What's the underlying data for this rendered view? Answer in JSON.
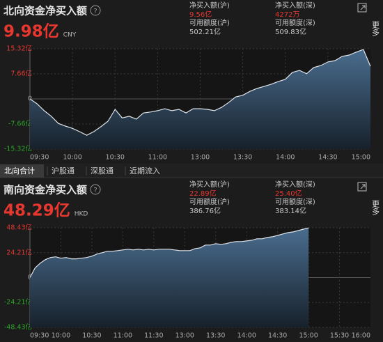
{
  "tabs": [
    "北向合计",
    "沪股通",
    "深股通",
    "近期流入"
  ],
  "more": "更多",
  "help_icon": "?",
  "chart_data": [
    {
      "type": "area",
      "title": "北向资金净买入额",
      "headline": "9.98亿",
      "currency": "CNY",
      "stats": [
        {
          "label": "净买入额(沪)",
          "value": "9.56亿",
          "color": "#e8372f"
        },
        {
          "label": "净买入额(深)",
          "value": "4272万",
          "color": "#e8372f"
        },
        {
          "label": "可用额度(沪)",
          "value": "502.21亿",
          "color": "#cccccc"
        },
        {
          "label": "可用额度(深)",
          "value": "509.83亿",
          "color": "#cccccc"
        }
      ],
      "categories": [
        "09:30",
        null,
        null,
        null,
        null,
        null,
        "10:00",
        null,
        null,
        null,
        null,
        null,
        "10:30",
        null,
        null,
        null,
        null,
        null,
        "11:00",
        null,
        null,
        null,
        null,
        null,
        "13:00",
        null,
        null,
        null,
        null,
        null,
        "13:30",
        null,
        null,
        null,
        null,
        null,
        "14:00",
        null,
        null,
        null,
        null,
        null,
        "14:30",
        null,
        null,
        null,
        null,
        null,
        "15:00"
      ],
      "values": [
        0,
        -1.5,
        -3.6,
        -5.3,
        -7.5,
        -8.3,
        -9.0,
        -10.0,
        -11.1,
        -10.0,
        -8.5,
        -6.8,
        -3.2,
        -5.8,
        -5.3,
        -6.2,
        -4.3,
        -4.0,
        -3.6,
        -3.0,
        -3.6,
        -3.2,
        -4.3,
        -3.0,
        -3.0,
        -3.2,
        -3.6,
        -2.6,
        -1.1,
        0.6,
        1.1,
        2.3,
        3.2,
        3.8,
        4.5,
        5.3,
        6.0,
        8.1,
        8.7,
        7.7,
        9.6,
        10.2,
        11.3,
        11.7,
        13.0,
        13.4,
        14.3,
        15.1,
        9.98
      ],
      "color": "#dfe4ea",
      "ylim": [
        -15.32,
        15.32
      ],
      "yticks": [
        {
          "value": 15.32,
          "label": "15.32亿"
        },
        {
          "value": 7.66,
          "label": "7.66亿"
        },
        0,
        {
          "value": -7.66,
          "label": "-7.66亿"
        },
        {
          "value": -15.32,
          "label": "-15.32亿"
        }
      ],
      "grid": true
    },
    {
      "type": "area",
      "title": "南向资金净买入额",
      "headline": "48.29亿",
      "currency": "HKD",
      "stats": [
        {
          "label": "净买入额(沪)",
          "value": "22.89亿",
          "color": "#e8372f"
        },
        {
          "label": "净买入额(深)",
          "value": "25.40亿",
          "color": "#e8372f"
        },
        {
          "label": "可用额度(沪)",
          "value": "386.76亿",
          "color": "#cccccc"
        },
        {
          "label": "可用额度(深)",
          "value": "383.14亿",
          "color": "#cccccc"
        }
      ],
      "categories": [
        "09:30",
        null,
        null,
        null,
        null,
        null,
        "10:00",
        null,
        null,
        null,
        null,
        null,
        "10:30",
        null,
        null,
        null,
        null,
        null,
        "11:00",
        null,
        null,
        null,
        null,
        null,
        "11:30",
        null,
        null,
        null,
        null,
        null,
        "13:00",
        null,
        null,
        null,
        null,
        null,
        "13:30",
        null,
        null,
        null,
        null,
        null,
        "14:00",
        null,
        null,
        null,
        null,
        null,
        "14:30",
        null,
        null,
        null,
        null,
        null,
        "15:00",
        null,
        null,
        null,
        null,
        null,
        "15:30",
        null,
        null,
        null,
        null,
        null,
        "16:00"
      ],
      "values": [
        0,
        9.4,
        14,
        17.5,
        19.5,
        20.2,
        18.8,
        19.5,
        18.2,
        18.2,
        18.8,
        19.5,
        20.8,
        22.9,
        24.2,
        25.6,
        25.6,
        26.2,
        26.9,
        27.6,
        26.9,
        27.6,
        26.9,
        27.6,
        26.9,
        27.6,
        27.6,
        27.6,
        26.9,
        26.2,
        26.2,
        26.2,
        28.2,
        28.9,
        31.6,
        31.6,
        33.0,
        32.3,
        33.0,
        34.3,
        35.0,
        35.0,
        35.6,
        36.3,
        37.7,
        37.7,
        39.0,
        39.7,
        41.0,
        42.4,
        43.7,
        44.4,
        45.7,
        47.1,
        48.29,
        null,
        null,
        null,
        null,
        null,
        null,
        null,
        null,
        null,
        null,
        null,
        null
      ],
      "color": "#dfe4ea",
      "ylim": [
        -48.43,
        48.43
      ],
      "yticks": [
        {
          "value": 48.43,
          "label": "48.43亿"
        },
        {
          "value": 24.21,
          "label": "24.21亿"
        },
        0,
        {
          "value": -24.21,
          "label": "-24.21亿"
        },
        {
          "value": -48.43,
          "label": "-48.43亿"
        }
      ],
      "grid": true
    }
  ]
}
